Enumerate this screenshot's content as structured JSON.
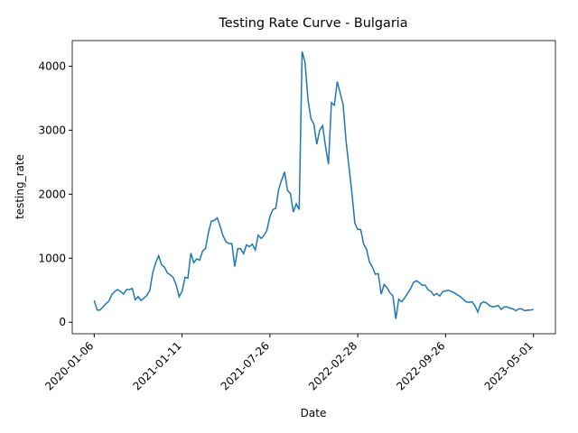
{
  "chart_data": {
    "type": "line",
    "title": "Testing Rate Curve - Bulgaria",
    "x_label": "Date",
    "y_label": "testing_rate",
    "categories": [
      "2020-01-06",
      null,
      null,
      null,
      null,
      null,
      null,
      null,
      null,
      null,
      null,
      null,
      null,
      null,
      null,
      null,
      null,
      null,
      null,
      null,
      null,
      null,
      null,
      null,
      null,
      null,
      null,
      null,
      null,
      null,
      "2021-01-11",
      null,
      null,
      null,
      null,
      null,
      null,
      null,
      null,
      null,
      null,
      null,
      null,
      null,
      null,
      null,
      null,
      null,
      null,
      null,
      null,
      null,
      null,
      null,
      null,
      null,
      null,
      null,
      null,
      null,
      "2021-07-26",
      null,
      null,
      null,
      null,
      null,
      null,
      null,
      null,
      null,
      null,
      null,
      null,
      null,
      null,
      null,
      null,
      null,
      null,
      null,
      null,
      null,
      null,
      null,
      null,
      null,
      null,
      null,
      null,
      null,
      "2022-02-28",
      null,
      null,
      null,
      null,
      null,
      null,
      null,
      null,
      null,
      null,
      null,
      null,
      null,
      null,
      null,
      null,
      null,
      null,
      null,
      null,
      null,
      null,
      null,
      null,
      null,
      null,
      null,
      null,
      null,
      "2022-09-26",
      null,
      null,
      null,
      null,
      null,
      null,
      null,
      null,
      null,
      null,
      null,
      null,
      null,
      null,
      null,
      null,
      null,
      null,
      null,
      null,
      null,
      null,
      null,
      null,
      null,
      null,
      null,
      null,
      null,
      "2023-05-01"
    ],
    "values": [
      340,
      190,
      190,
      240,
      290,
      330,
      430,
      480,
      510,
      480,
      440,
      510,
      510,
      530,
      350,
      400,
      340,
      380,
      420,
      500,
      780,
      930,
      1040,
      900,
      860,
      770,
      740,
      700,
      580,
      400,
      480,
      700,
      690,
      1080,
      930,
      990,
      970,
      1110,
      1150,
      1400,
      1580,
      1590,
      1630,
      1500,
      1350,
      1260,
      1230,
      1230,
      870,
      1150,
      1150,
      1070,
      1210,
      1180,
      1220,
      1130,
      1360,
      1310,
      1360,
      1440,
      1650,
      1760,
      1780,
      2080,
      2220,
      2350,
      2060,
      2010,
      1720,
      1850,
      1760,
      4230,
      4060,
      3480,
      3180,
      3100,
      2780,
      3000,
      3070,
      2740,
      2470,
      3430,
      3390,
      3760,
      3580,
      3400,
      2830,
      2430,
      2020,
      1550,
      1450,
      1450,
      1220,
      1140,
      940,
      860,
      750,
      760,
      440,
      590,
      540,
      460,
      410,
      50,
      360,
      320,
      380,
      450,
      520,
      620,
      650,
      620,
      580,
      580,
      510,
      480,
      420,
      450,
      410,
      480,
      490,
      500,
      480,
      460,
      430,
      400,
      360,
      320,
      310,
      320,
      260,
      160,
      290,
      320,
      300,
      260,
      240,
      250,
      260,
      200,
      240,
      240,
      220,
      210,
      180,
      210,
      210,
      180,
      190,
      190,
      200
    ],
    "color": "#1f77b4",
    "ylim": [
      -180,
      4400
    ],
    "yticks": [
      0,
      1000,
      2000,
      3000,
      4000
    ],
    "grid": false
  }
}
